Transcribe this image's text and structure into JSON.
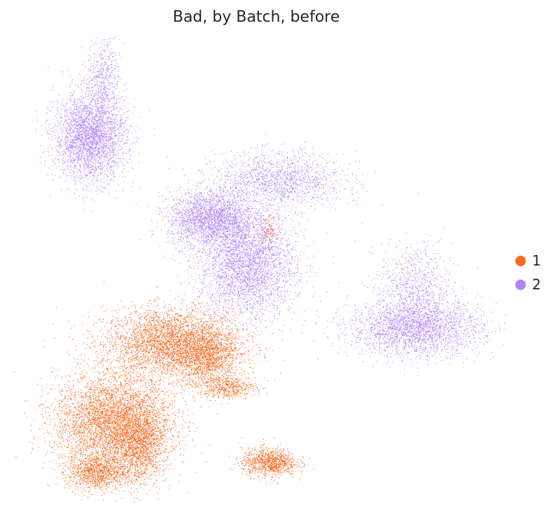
{
  "chart_data": {
    "type": "scatter",
    "title": "Bad, by Batch, before",
    "xlabel": "",
    "ylabel": "",
    "grid": false,
    "axes_visible": false,
    "legend_placement": "right",
    "series": [
      {
        "name": "1",
        "color": "#f96820",
        "clusters": [
          {
            "id": "upper-middle-blob",
            "cx": 4.3,
            "cy": 4.6,
            "sx": 1.05,
            "sy": 0.55,
            "n": 3800
          },
          {
            "id": "upper-middle-right-lobe",
            "cx": 5.4,
            "cy": 4.1,
            "sx": 0.5,
            "sy": 0.45,
            "n": 1200
          },
          {
            "id": "upper-middle-tail",
            "cx": 6.0,
            "cy": 3.2,
            "sx": 0.45,
            "sy": 0.18,
            "n": 500
          },
          {
            "id": "lower-left-upper",
            "cx": 2.5,
            "cy": 2.1,
            "sx": 0.9,
            "sy": 0.75,
            "n": 4500
          },
          {
            "id": "lower-left-right-lobe",
            "cx": 3.3,
            "cy": 1.3,
            "sx": 0.4,
            "sy": 0.6,
            "n": 1400
          },
          {
            "id": "lower-left-bottom",
            "cx": 2.0,
            "cy": 0.5,
            "sx": 0.45,
            "sy": 0.3,
            "n": 1100
          },
          {
            "id": "bottom-small-cluster",
            "cx": 7.3,
            "cy": 0.8,
            "sx": 0.42,
            "sy": 0.22,
            "n": 1000
          },
          {
            "id": "small-patch-in-batch2",
            "cx": 7.3,
            "cy": 8.2,
            "sx": 0.12,
            "sy": 0.25,
            "n": 120
          }
        ]
      },
      {
        "name": "2",
        "color": "#b086f6",
        "clusters": [
          {
            "id": "top-left-blob",
            "cx": 1.8,
            "cy": 11.2,
            "sx": 0.55,
            "sy": 0.7,
            "n": 3200
          },
          {
            "id": "top-left-spike",
            "cx": 2.2,
            "cy": 13.1,
            "sx": 0.25,
            "sy": 0.6,
            "n": 500
          },
          {
            "id": "middle-left-lobe",
            "cx": 5.5,
            "cy": 8.6,
            "sx": 0.65,
            "sy": 0.45,
            "n": 2400
          },
          {
            "id": "middle-main-body",
            "cx": 6.6,
            "cy": 7.1,
            "sx": 0.75,
            "sy": 0.85,
            "n": 3500
          },
          {
            "id": "middle-diagonal-arm",
            "cx": 7.6,
            "cy": 9.8,
            "sx": 1.0,
            "sy": 0.45,
            "n": 1600
          },
          {
            "id": "right-cluster-base",
            "cx": 11.8,
            "cy": 5.1,
            "sx": 1.0,
            "sy": 0.45,
            "n": 2600
          },
          {
            "id": "right-cluster-top",
            "cx": 11.8,
            "cy": 6.4,
            "sx": 0.55,
            "sy": 0.7,
            "n": 800
          }
        ]
      }
    ]
  }
}
